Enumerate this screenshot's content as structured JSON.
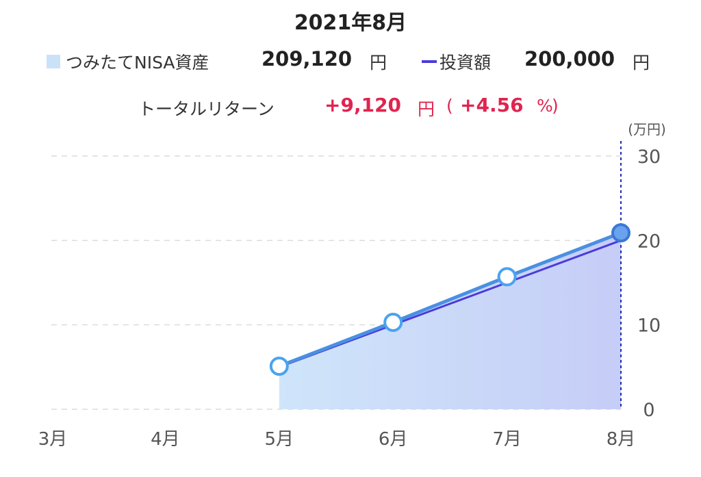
{
  "header": {
    "title": "2021年8月"
  },
  "legend": {
    "asset": {
      "label": "つみたてNISA資産",
      "value": "209,120",
      "unit": "円",
      "color": "#c9e2f8"
    },
    "invest": {
      "label": "投資額",
      "value": "200,000",
      "unit": "円",
      "color": "#4b3bdb"
    }
  },
  "total_return": {
    "label": "トータルリターン",
    "amount": "+9,120",
    "unit": "円",
    "open": "(",
    "percent": "+4.56",
    "percent_unit": "%",
    "close": ")",
    "color": "#e0244f"
  },
  "chart_data": {
    "type": "area",
    "categories": [
      "3月",
      "4月",
      "5月",
      "6月",
      "7月",
      "8月"
    ],
    "y_unit_label": "(万円)",
    "ylim": [
      0,
      30
    ],
    "yticks": [
      "0",
      "10",
      "20",
      "30"
    ],
    "ytick_values": [
      0,
      10,
      20,
      30
    ],
    "grid": true,
    "series": [
      {
        "name": "つみたてNISA資産",
        "values": [
          null,
          null,
          5.1,
          10.3,
          15.7,
          20.9
        ],
        "color": "#4a90e2"
      },
      {
        "name": "投資額",
        "values": [
          null,
          null,
          5.0,
          10.0,
          15.0,
          20.0
        ],
        "color": "#4b3bdb"
      }
    ],
    "selected_category": "8月"
  }
}
